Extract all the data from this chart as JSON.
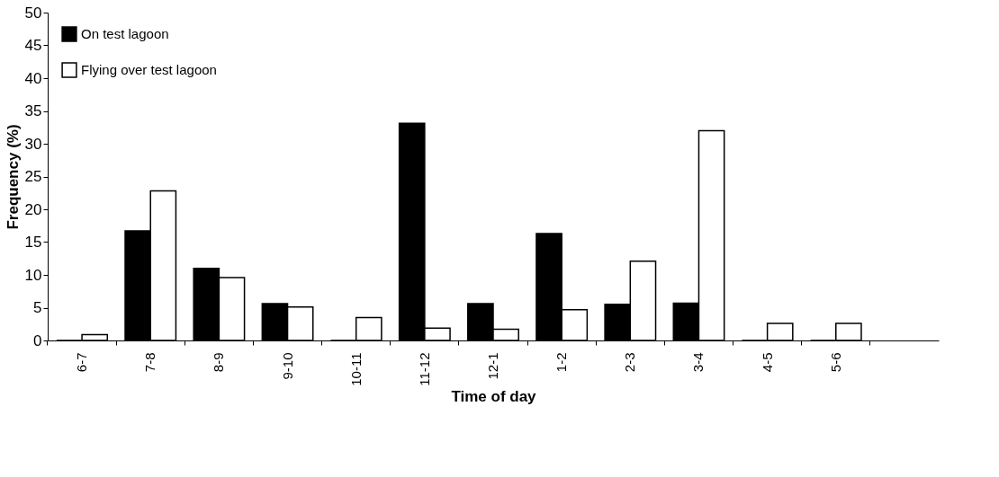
{
  "chart_data": {
    "type": "bar",
    "xlabel": "Time of day",
    "ylabel": "Frequency (%)",
    "categories": [
      "6-7",
      "7-8",
      "8-9",
      "9-10",
      "10-11",
      "11-12",
      "12-1",
      "1-2",
      "2-3",
      "3-4",
      "4-5",
      "5-6",
      null
    ],
    "series": [
      {
        "name": "On test lagoon",
        "color": "#000000",
        "values": [
          0,
          16.7,
          11.0,
          5.6,
          0,
          33.1,
          5.6,
          16.3,
          5.5,
          5.7,
          0,
          0,
          null
        ]
      },
      {
        "name": "Flying over test lagoon",
        "color": "#ffffff",
        "values": [
          0.9,
          22.8,
          9.6,
          5.1,
          3.5,
          1.9,
          1.7,
          4.7,
          12.1,
          32.0,
          2.6,
          2.6,
          null
        ]
      }
    ],
    "ylim": [
      0,
      50
    ],
    "yticks": [
      0,
      5,
      10,
      15,
      20,
      25,
      30,
      35,
      40,
      45,
      50
    ],
    "grid": false,
    "legend": "top left"
  }
}
